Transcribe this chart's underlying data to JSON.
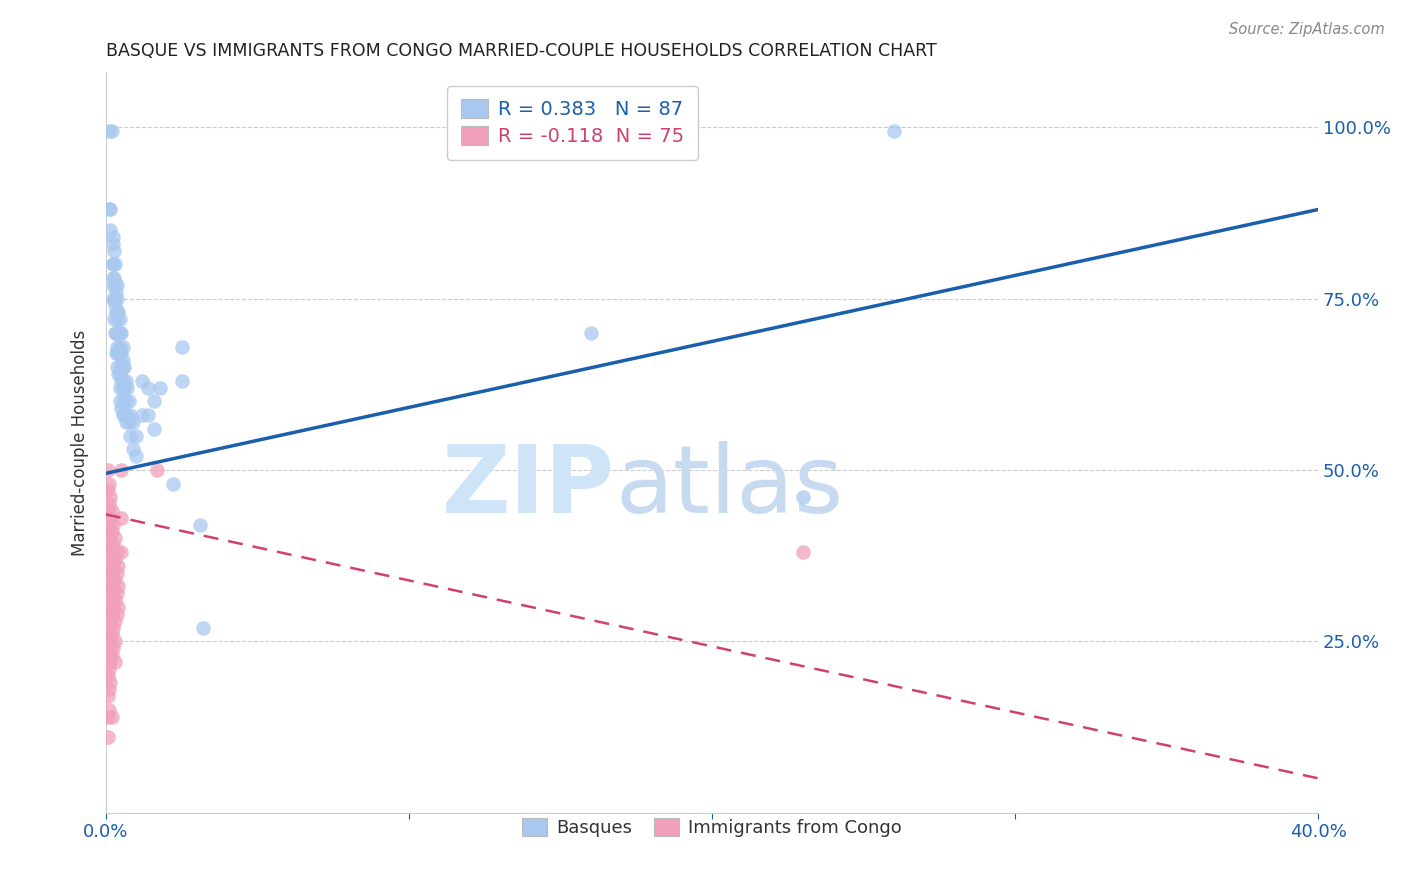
{
  "title": "BASQUE VS IMMIGRANTS FROM CONGO MARRIED-COUPLE HOUSEHOLDS CORRELATION CHART",
  "source": "Source: ZipAtlas.com",
  "ylabel": "Married-couple Households",
  "legend_labels": [
    "Basques",
    "Immigrants from Congo"
  ],
  "r_basque": 0.383,
  "n_basque": 87,
  "r_congo": -0.118,
  "n_congo": 75,
  "blue_color": "#a8c8f0",
  "pink_color": "#f0a0b8",
  "blue_line_color": "#1a5fac",
  "pink_line_color": "#d04070",
  "watermark_zip": "ZIP",
  "watermark_atlas": "atlas",
  "xlim": [
    0.0,
    40.0
  ],
  "ylim": [
    0.0,
    1.08
  ],
  "blue_line_x0": 0.0,
  "blue_line_y0": 0.495,
  "blue_line_x1": 40.0,
  "blue_line_y1": 0.88,
  "pink_line_x0": 0.0,
  "pink_line_y0": 0.435,
  "pink_line_x1": 40.0,
  "pink_line_y1": 0.05,
  "blue_scatter": [
    [
      0.1,
      0.995
    ],
    [
      0.1,
      0.88
    ],
    [
      0.15,
      0.88
    ],
    [
      0.15,
      0.85
    ],
    [
      0.2,
      0.995
    ],
    [
      0.22,
      0.83
    ],
    [
      0.22,
      0.8
    ],
    [
      0.22,
      0.77
    ],
    [
      0.25,
      0.84
    ],
    [
      0.25,
      0.8
    ],
    [
      0.25,
      0.78
    ],
    [
      0.25,
      0.75
    ],
    [
      0.28,
      0.82
    ],
    [
      0.28,
      0.78
    ],
    [
      0.28,
      0.75
    ],
    [
      0.28,
      0.72
    ],
    [
      0.3,
      0.8
    ],
    [
      0.3,
      0.77
    ],
    [
      0.3,
      0.74
    ],
    [
      0.3,
      0.7
    ],
    [
      0.32,
      0.76
    ],
    [
      0.32,
      0.73
    ],
    [
      0.32,
      0.7
    ],
    [
      0.32,
      0.67
    ],
    [
      0.35,
      0.77
    ],
    [
      0.35,
      0.73
    ],
    [
      0.35,
      0.7
    ],
    [
      0.35,
      0.67
    ],
    [
      0.38,
      0.75
    ],
    [
      0.38,
      0.72
    ],
    [
      0.38,
      0.68
    ],
    [
      0.38,
      0.65
    ],
    [
      0.4,
      0.73
    ],
    [
      0.4,
      0.7
    ],
    [
      0.4,
      0.67
    ],
    [
      0.4,
      0.64
    ],
    [
      0.45,
      0.72
    ],
    [
      0.45,
      0.68
    ],
    [
      0.45,
      0.65
    ],
    [
      0.45,
      0.62
    ],
    [
      0.48,
      0.7
    ],
    [
      0.48,
      0.67
    ],
    [
      0.48,
      0.64
    ],
    [
      0.48,
      0.6
    ],
    [
      0.5,
      0.7
    ],
    [
      0.5,
      0.67
    ],
    [
      0.5,
      0.63
    ],
    [
      0.5,
      0.59
    ],
    [
      0.55,
      0.68
    ],
    [
      0.55,
      0.65
    ],
    [
      0.55,
      0.62
    ],
    [
      0.55,
      0.58
    ],
    [
      0.58,
      0.66
    ],
    [
      0.58,
      0.63
    ],
    [
      0.58,
      0.6
    ],
    [
      0.6,
      0.65
    ],
    [
      0.6,
      0.62
    ],
    [
      0.6,
      0.58
    ],
    [
      0.65,
      0.63
    ],
    [
      0.65,
      0.6
    ],
    [
      0.65,
      0.57
    ],
    [
      0.7,
      0.62
    ],
    [
      0.7,
      0.58
    ],
    [
      0.75,
      0.6
    ],
    [
      0.75,
      0.57
    ],
    [
      0.8,
      0.58
    ],
    [
      0.8,
      0.55
    ],
    [
      0.9,
      0.57
    ],
    [
      0.9,
      0.53
    ],
    [
      1.0,
      0.55
    ],
    [
      1.0,
      0.52
    ],
    [
      1.2,
      0.63
    ],
    [
      1.2,
      0.58
    ],
    [
      1.4,
      0.62
    ],
    [
      1.4,
      0.58
    ],
    [
      1.6,
      0.6
    ],
    [
      1.6,
      0.56
    ],
    [
      1.8,
      0.62
    ],
    [
      2.2,
      0.48
    ],
    [
      2.5,
      0.68
    ],
    [
      2.5,
      0.63
    ],
    [
      3.1,
      0.42
    ],
    [
      3.2,
      0.27
    ],
    [
      16.0,
      0.7
    ],
    [
      23.0,
      0.46
    ],
    [
      26.0,
      0.995
    ]
  ],
  "pink_scatter": [
    [
      0.08,
      0.5
    ],
    [
      0.08,
      0.47
    ],
    [
      0.08,
      0.44
    ],
    [
      0.08,
      0.41
    ],
    [
      0.08,
      0.38
    ],
    [
      0.08,
      0.35
    ],
    [
      0.08,
      0.32
    ],
    [
      0.08,
      0.29
    ],
    [
      0.08,
      0.26
    ],
    [
      0.08,
      0.23
    ],
    [
      0.08,
      0.2
    ],
    [
      0.08,
      0.17
    ],
    [
      0.08,
      0.14
    ],
    [
      0.08,
      0.11
    ],
    [
      0.1,
      0.48
    ],
    [
      0.1,
      0.45
    ],
    [
      0.1,
      0.42
    ],
    [
      0.1,
      0.39
    ],
    [
      0.1,
      0.36
    ],
    [
      0.1,
      0.33
    ],
    [
      0.1,
      0.3
    ],
    [
      0.1,
      0.27
    ],
    [
      0.1,
      0.24
    ],
    [
      0.1,
      0.21
    ],
    [
      0.1,
      0.18
    ],
    [
      0.1,
      0.15
    ],
    [
      0.15,
      0.46
    ],
    [
      0.15,
      0.43
    ],
    [
      0.15,
      0.4
    ],
    [
      0.15,
      0.37
    ],
    [
      0.15,
      0.34
    ],
    [
      0.15,
      0.31
    ],
    [
      0.15,
      0.28
    ],
    [
      0.15,
      0.25
    ],
    [
      0.15,
      0.22
    ],
    [
      0.15,
      0.19
    ],
    [
      0.2,
      0.44
    ],
    [
      0.2,
      0.41
    ],
    [
      0.2,
      0.38
    ],
    [
      0.2,
      0.35
    ],
    [
      0.2,
      0.32
    ],
    [
      0.2,
      0.29
    ],
    [
      0.2,
      0.26
    ],
    [
      0.2,
      0.23
    ],
    [
      0.2,
      0.14
    ],
    [
      0.25,
      0.42
    ],
    [
      0.25,
      0.39
    ],
    [
      0.25,
      0.36
    ],
    [
      0.25,
      0.33
    ],
    [
      0.25,
      0.3
    ],
    [
      0.25,
      0.27
    ],
    [
      0.25,
      0.24
    ],
    [
      0.3,
      0.4
    ],
    [
      0.3,
      0.37
    ],
    [
      0.3,
      0.34
    ],
    [
      0.3,
      0.31
    ],
    [
      0.3,
      0.28
    ],
    [
      0.3,
      0.25
    ],
    [
      0.3,
      0.22
    ],
    [
      0.35,
      0.38
    ],
    [
      0.35,
      0.35
    ],
    [
      0.35,
      0.32
    ],
    [
      0.35,
      0.29
    ],
    [
      0.4,
      0.36
    ],
    [
      0.4,
      0.33
    ],
    [
      0.4,
      0.3
    ],
    [
      0.5,
      0.5
    ],
    [
      0.5,
      0.43
    ],
    [
      0.5,
      0.38
    ],
    [
      1.7,
      0.5
    ],
    [
      23.0,
      0.38
    ]
  ]
}
